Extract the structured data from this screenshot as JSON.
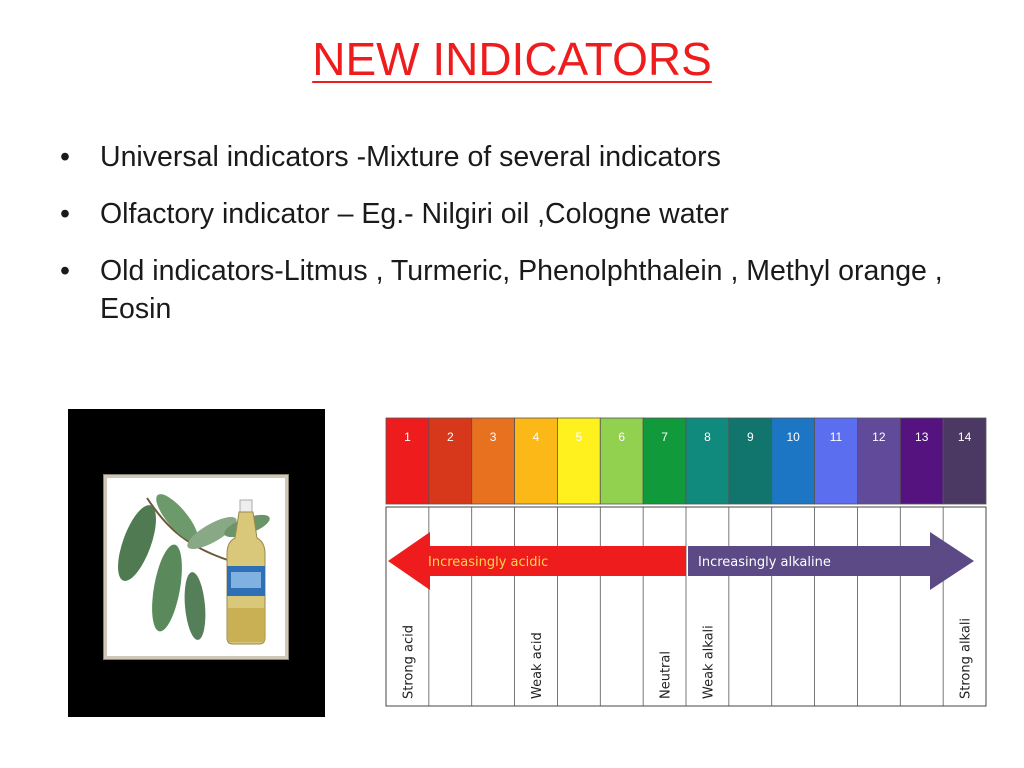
{
  "slide": {
    "title": "NEW INDICATORS",
    "bullets": [
      "Universal indicators -Mixture of several indicators",
      "Olfactory indicator – Eg.-  Nilgiri oil ,Cologne water",
      "Old indicators-Litmus , Turmeric, Phenolphthalein , Methyl orange , Eosin"
    ],
    "bullet_glyph": "•"
  },
  "colors": {
    "title": "#ee1c1c",
    "text": "#1a1a1a"
  },
  "photo": {
    "subject": "eucalyptus leaves and a bottle of Nilgiri oil",
    "icon": "nilgiri-oil-photo"
  },
  "ph_scale": {
    "levels": [
      {
        "label": "1",
        "color": "#ee1c1c"
      },
      {
        "label": "2",
        "color": "#d7381b"
      },
      {
        "label": "3",
        "color": "#e8711f"
      },
      {
        "label": "4",
        "color": "#fbb817"
      },
      {
        "label": "5",
        "color": "#fff11d"
      },
      {
        "label": "6",
        "color": "#92d050"
      },
      {
        "label": "7",
        "color": "#119a3b"
      },
      {
        "label": "8",
        "color": "#0f8a7c"
      },
      {
        "label": "9",
        "color": "#11756e"
      },
      {
        "label": "10",
        "color": "#1c76c4"
      },
      {
        "label": "11",
        "color": "#5b6ef0"
      },
      {
        "label": "12",
        "color": "#624a9b"
      },
      {
        "label": "13",
        "color": "#54137e"
      },
      {
        "label": "14",
        "color": "#4b3863"
      }
    ],
    "acid_arrow": {
      "text": "Increasingly acidic",
      "color": "#ee1c1c",
      "from_level": 7,
      "to_level": 1
    },
    "alkaline_arrow": {
      "text": "Increasingly alkaline",
      "color": "#5b4a86",
      "from_level": 8,
      "to_level": 14
    },
    "markers": [
      {
        "text": "Strong acid",
        "level": 1
      },
      {
        "text": "Weak acid",
        "level": 4
      },
      {
        "text": "Neutral",
        "level": 7
      },
      {
        "text": "Weak alkali",
        "level": 8
      },
      {
        "text": "Strong alkali",
        "level": 14
      }
    ]
  }
}
